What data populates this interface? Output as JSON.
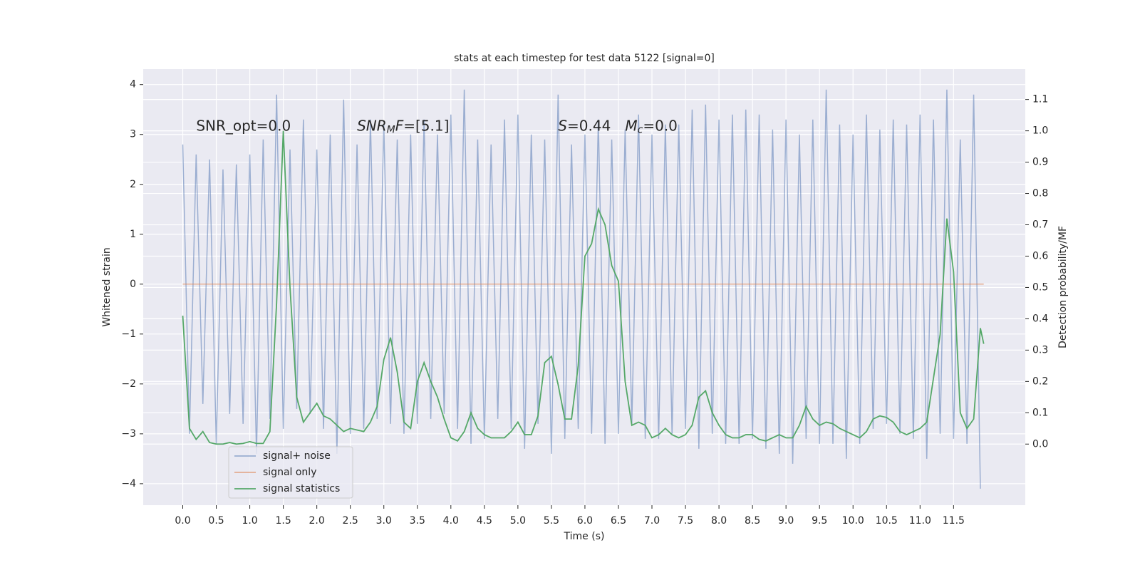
{
  "chart_data": {
    "type": "line",
    "title": "stats at each timestep for test data 5122 [signal=0]",
    "xlabel": "Time (s)",
    "ylabel": "Whitened strain",
    "y2label": "Detection probability/MF",
    "xlim": [
      -0.59,
      12.57
    ],
    "ylim": [
      -4.43,
      4.31
    ],
    "y2lim": [
      -0.195,
      1.197
    ],
    "xticks": [
      {
        "value": 0,
        "label": "0.0"
      },
      0.5,
      {
        "value": 1,
        "label": "1.0"
      },
      1.5,
      {
        "value": 2,
        "label": "2.0"
      },
      2.5,
      {
        "value": 3,
        "label": "3.0"
      },
      3.5,
      {
        "value": 4,
        "label": "4.0"
      },
      4.5,
      {
        "value": 5,
        "label": "5.0"
      },
      5.5,
      {
        "value": 6,
        "label": "6.0"
      },
      6.5,
      {
        "value": 7,
        "label": "7.0"
      },
      7.5,
      {
        "value": 8,
        "label": "8.0"
      },
      8.5,
      {
        "value": 9,
        "label": "9.0"
      },
      9.5,
      {
        "value": 10,
        "label": "10.0"
      },
      10.5,
      {
        "value": 11,
        "label": "11.0"
      },
      11.5
    ],
    "yticks": [
      {
        "value": -4,
        "label": "−4"
      },
      {
        "value": -3,
        "label": "−3"
      },
      {
        "value": -2,
        "label": "−2"
      },
      {
        "value": -1,
        "label": "−1"
      },
      0,
      1,
      2,
      3,
      4
    ],
    "y2ticks": [
      {
        "value": 0,
        "label": "0.0"
      },
      0.1,
      0.2,
      0.3,
      0.4,
      0.5,
      0.6,
      0.7,
      0.8,
      0.9,
      {
        "value": 1,
        "label": "1.0"
      },
      1.1
    ],
    "grid": true,
    "legend": "lower left",
    "annotations": [
      {
        "x": 0.2,
        "y": 3.16,
        "parts": [
          {
            "text": "SNR_opt=0.0"
          }
        ]
      },
      {
        "x": 2.6,
        "y": 3.16,
        "parts": [
          {
            "text": "SNR",
            "italic": true
          },
          {
            "text": "M",
            "italic": true,
            "sub": true
          },
          {
            "text": "F",
            "italic": true
          },
          {
            "text": "=[5.1]"
          }
        ]
      },
      {
        "x": 5.6,
        "y": 3.16,
        "parts": [
          {
            "text": "S",
            "italic": true
          },
          {
            "text": "=0.44"
          }
        ]
      },
      {
        "x": 6.6,
        "y": 3.16,
        "parts": [
          {
            "text": "M",
            "italic": true
          },
          {
            "text": "c",
            "italic": true,
            "sub": true
          },
          {
            "text": "=0.0"
          }
        ]
      }
    ],
    "series": [
      {
        "name": "signal+ noise",
        "color": "#4c72b0",
        "opacity": 0.5,
        "x": [
          0,
          0.1,
          0.2,
          0.3,
          0.4,
          0.5,
          0.6,
          0.7,
          0.8,
          0.9,
          1,
          1.1,
          1.2,
          1.3,
          1.4,
          1.5,
          1.6,
          1.7,
          1.8,
          1.9,
          2,
          2.1,
          2.2,
          2.3,
          2.4,
          2.5,
          2.6,
          2.7,
          2.8,
          2.9,
          3,
          3.1,
          3.2,
          3.3,
          3.4,
          3.5,
          3.6,
          3.7,
          3.8,
          3.9,
          4,
          4.1,
          4.2,
          4.3,
          4.4,
          4.5,
          4.6,
          4.7,
          4.8,
          4.9,
          5,
          5.1,
          5.2,
          5.3,
          5.4,
          5.5,
          5.6,
          5.7,
          5.8,
          5.9,
          6,
          6.1,
          6.2,
          6.3,
          6.4,
          6.5,
          6.6,
          6.7,
          6.8,
          6.9,
          7,
          7.1,
          7.2,
          7.3,
          7.4,
          7.5,
          7.6,
          7.7,
          7.8,
          7.9,
          8,
          8.1,
          8.2,
          8.3,
          8.4,
          8.5,
          8.6,
          8.7,
          8.8,
          8.9,
          9,
          9.1,
          9.2,
          9.3,
          9.4,
          9.5,
          9.6,
          9.7,
          9.8,
          9.9,
          10,
          10.1,
          10.2,
          10.3,
          10.4,
          10.5,
          10.6,
          10.7,
          10.8,
          10.9,
          11,
          11.1,
          11.2,
          11.3,
          11.4,
          11.5,
          11.6,
          11.7,
          11.8,
          11.9
        ],
        "values": [
          2.8,
          -3.0,
          2.6,
          -2.4,
          2.5,
          -3.2,
          2.3,
          -2.6,
          2.4,
          -2.8,
          2.6,
          -3.4,
          2.9,
          -2.7,
          3.8,
          -2.9,
          2.7,
          -2.5,
          3.3,
          -2.6,
          2.7,
          -2.9,
          3.0,
          -3.4,
          3.7,
          -3.0,
          2.8,
          -2.9,
          3.3,
          -2.7,
          3.2,
          -2.8,
          2.9,
          -3.0,
          3.0,
          -2.8,
          3.3,
          -2.7,
          3.0,
          -2.6,
          3.4,
          -2.9,
          3.9,
          -3.2,
          2.9,
          -3.1,
          2.8,
          -2.7,
          3.3,
          -2.9,
          3.4,
          -3.3,
          3.0,
          -2.8,
          2.9,
          -3.4,
          3.8,
          -3.1,
          2.8,
          -2.9,
          3.0,
          -3.0,
          3.3,
          -3.2,
          2.9,
          -3.0,
          3.1,
          -2.8,
          3.4,
          -3.1,
          3.0,
          -3.1,
          3.2,
          -3.0,
          3.2,
          -2.9,
          3.5,
          -3.3,
          3.6,
          -3.0,
          3.3,
          -3.2,
          3.4,
          -3.2,
          3.5,
          -3.1,
          3.4,
          -3.3,
          3.1,
          -3.4,
          3.3,
          -3.6,
          3.0,
          -3.1,
          3.3,
          -3.2,
          3.9,
          -3.2,
          3.2,
          -3.5,
          3.0,
          -3.2,
          3.4,
          -2.9,
          3.1,
          -2.8,
          3.3,
          -3.0,
          3.2,
          -3.1,
          3.4,
          -3.5,
          3.3,
          -3.0,
          3.9,
          -3.1,
          2.9,
          -3.2,
          3.8,
          -4.1
        ]
      },
      {
        "name": "signal only",
        "color": "#dd8452",
        "opacity": 0.6,
        "x": [
          0,
          11.95
        ],
        "values": [
          0,
          0
        ]
      },
      {
        "name": "signal statistics",
        "color": "#55a868",
        "opacity": 1,
        "axis": "y2",
        "x": [
          0,
          0.1,
          0.2,
          0.3,
          0.4,
          0.5,
          0.6,
          0.7,
          0.8,
          0.9,
          1,
          1.1,
          1.2,
          1.3,
          1.4,
          1.5,
          1.6,
          1.7,
          1.8,
          1.9,
          2,
          2.1,
          2.2,
          2.3,
          2.4,
          2.5,
          2.6,
          2.7,
          2.8,
          2.9,
          3,
          3.1,
          3.2,
          3.3,
          3.4,
          3.5,
          3.6,
          3.7,
          3.8,
          3.9,
          4,
          4.1,
          4.2,
          4.3,
          4.4,
          4.5,
          4.6,
          4.7,
          4.8,
          4.9,
          5,
          5.1,
          5.2,
          5.3,
          5.4,
          5.5,
          5.6,
          5.7,
          5.8,
          5.9,
          6,
          6.1,
          6.2,
          6.3,
          6.4,
          6.5,
          6.6,
          6.7,
          6.8,
          6.9,
          7,
          7.1,
          7.2,
          7.3,
          7.4,
          7.5,
          7.6,
          7.7,
          7.8,
          7.9,
          8,
          8.1,
          8.2,
          8.3,
          8.4,
          8.5,
          8.6,
          8.7,
          8.8,
          8.9,
          9,
          9.1,
          9.2,
          9.3,
          9.4,
          9.5,
          9.6,
          9.7,
          9.8,
          9.9,
          10,
          10.1,
          10.2,
          10.3,
          10.4,
          10.5,
          10.6,
          10.7,
          10.8,
          10.9,
          11,
          11.1,
          11.2,
          11.3,
          11.4,
          11.5,
          11.6,
          11.7,
          11.8,
          11.9,
          11.95
        ],
        "values": [
          0.41,
          0.05,
          0.015,
          0.04,
          0.005,
          0.0,
          0.0,
          0.005,
          0.0,
          0.002,
          0.008,
          0.002,
          0.002,
          0.04,
          0.45,
          1.0,
          0.5,
          0.15,
          0.07,
          0.1,
          0.13,
          0.09,
          0.08,
          0.06,
          0.04,
          0.05,
          0.045,
          0.04,
          0.07,
          0.12,
          0.27,
          0.34,
          0.23,
          0.07,
          0.05,
          0.2,
          0.26,
          0.2,
          0.15,
          0.08,
          0.02,
          0.01,
          0.04,
          0.1,
          0.05,
          0.03,
          0.02,
          0.02,
          0.02,
          0.04,
          0.07,
          0.03,
          0.03,
          0.09,
          0.26,
          0.28,
          0.19,
          0.08,
          0.08,
          0.25,
          0.6,
          0.64,
          0.75,
          0.7,
          0.57,
          0.52,
          0.2,
          0.06,
          0.07,
          0.06,
          0.02,
          0.03,
          0.05,
          0.03,
          0.02,
          0.03,
          0.06,
          0.15,
          0.17,
          0.1,
          0.06,
          0.03,
          0.02,
          0.02,
          0.03,
          0.03,
          0.015,
          0.01,
          0.02,
          0.03,
          0.02,
          0.02,
          0.06,
          0.12,
          0.08,
          0.06,
          0.07,
          0.065,
          0.05,
          0.04,
          0.03,
          0.02,
          0.04,
          0.08,
          0.09,
          0.085,
          0.07,
          0.04,
          0.03,
          0.04,
          0.05,
          0.07,
          0.21,
          0.35,
          0.72,
          0.55,
          0.1,
          0.05,
          0.08,
          0.37,
          0.32
        ]
      }
    ]
  }
}
